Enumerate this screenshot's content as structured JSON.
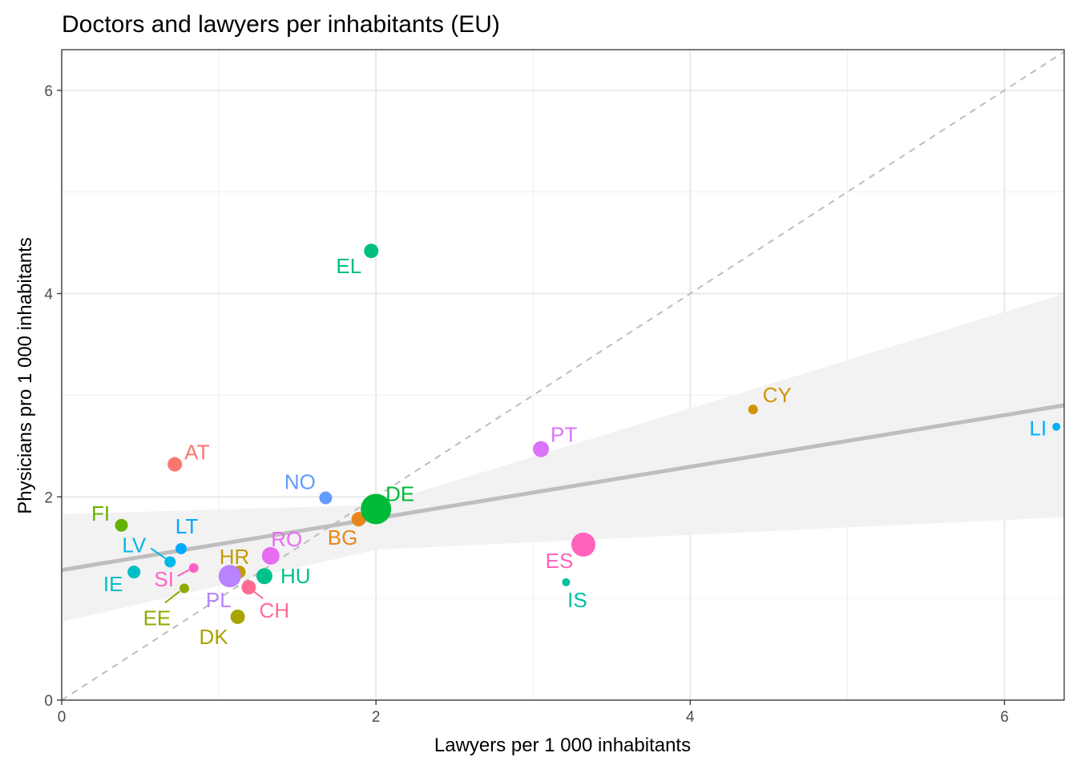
{
  "chart_data": {
    "type": "scatter",
    "title": "Doctors and lawyers per inhabitants (EU)",
    "xlabel": "Lawyers per 1 000 inhabitants",
    "ylabel": "Physicians pro 1 000 inhabitants",
    "xlim": [
      0,
      6.38
    ],
    "ylim": [
      0,
      6.4
    ],
    "x_ticks": [
      0,
      2,
      4,
      6
    ],
    "y_ticks": [
      0,
      2,
      4,
      6
    ],
    "grid": true,
    "reference_line": {
      "style": "dashed",
      "slope": 1,
      "intercept": 0,
      "color": "#bdbdbd"
    },
    "trend_line": {
      "intercept": 1.28,
      "slope": 0.254,
      "color": "#bebebe"
    },
    "confidence_band": {
      "x": [
        0,
        2,
        6.38
      ],
      "lower": [
        0.77,
        1.48,
        1.8
      ],
      "upper": [
        1.83,
        1.92,
        4.0
      ],
      "color": "#f2f2f2"
    },
    "points": [
      {
        "label": "AT",
        "x": 0.72,
        "y": 2.32,
        "size": 9,
        "color": "#F8766D"
      },
      {
        "label": "BG",
        "x": 1.89,
        "y": 1.78,
        "size": 9,
        "color": "#E7861B"
      },
      {
        "label": "CY",
        "x": 4.4,
        "y": 2.86,
        "size": 6,
        "color": "#D39200"
      },
      {
        "label": "HR",
        "x": 1.13,
        "y": 1.26,
        "size": 8,
        "color": "#C49A00"
      },
      {
        "label": "DK",
        "x": 1.12,
        "y": 0.82,
        "size": 9,
        "color": "#A8A400"
      },
      {
        "label": "EE",
        "x": 0.78,
        "y": 1.1,
        "size": 6,
        "color": "#8FAA00"
      },
      {
        "label": "FI",
        "x": 0.38,
        "y": 1.72,
        "size": 8,
        "color": "#64B200"
      },
      {
        "label": "DE",
        "x": 2.0,
        "y": 1.88,
        "size": 19,
        "color": "#00BA38"
      },
      {
        "label": "EL",
        "x": 1.97,
        "y": 4.42,
        "size": 9,
        "color": "#00BF7D"
      },
      {
        "label": "HU",
        "x": 1.29,
        "y": 1.22,
        "size": 10,
        "color": "#00C08B"
      },
      {
        "label": "IS",
        "x": 3.21,
        "y": 1.16,
        "size": 5,
        "color": "#00C1A3"
      },
      {
        "label": "IE",
        "x": 0.46,
        "y": 1.26,
        "size": 8,
        "color": "#00BFC4"
      },
      {
        "label": "LV",
        "x": 0.69,
        "y": 1.36,
        "size": 7,
        "color": "#00B8E7"
      },
      {
        "label": "LI",
        "x": 6.33,
        "y": 2.69,
        "size": 5,
        "color": "#00B0F6"
      },
      {
        "label": "LT",
        "x": 0.76,
        "y": 1.49,
        "size": 7,
        "color": "#00A9FF"
      },
      {
        "label": "NO",
        "x": 1.68,
        "y": 1.99,
        "size": 8,
        "color": "#619CFF"
      },
      {
        "label": "PL",
        "x": 1.07,
        "y": 1.22,
        "size": 14,
        "color": "#B983FF"
      },
      {
        "label": "PT",
        "x": 3.05,
        "y": 2.47,
        "size": 10,
        "color": "#DB72FB"
      },
      {
        "label": "RO",
        "x": 1.33,
        "y": 1.42,
        "size": 11,
        "color": "#E76BF3"
      },
      {
        "label": "SI",
        "x": 0.84,
        "y": 1.3,
        "size": 6,
        "color": "#FF61C3"
      },
      {
        "label": "ES",
        "x": 3.32,
        "y": 1.53,
        "size": 15,
        "color": "#FF62BC"
      },
      {
        "label": "CH",
        "x": 1.19,
        "y": 1.11,
        "size": 9,
        "color": "#FF6C91"
      }
    ]
  }
}
